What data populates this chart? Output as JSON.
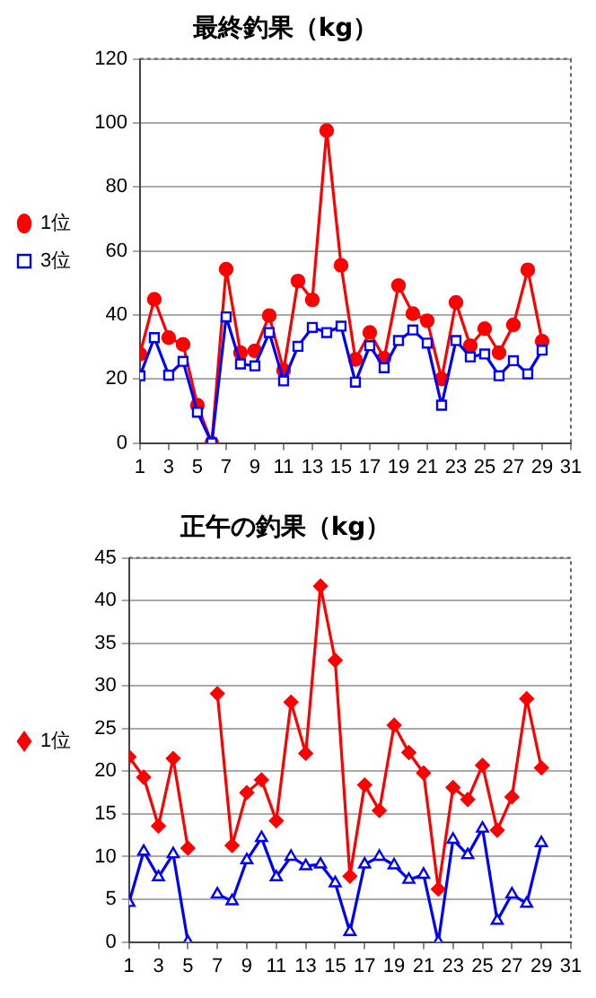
{
  "chart_data": [
    {
      "type": "line",
      "title": "最終釣果（kg）",
      "x": [
        1,
        2,
        3,
        4,
        5,
        6,
        7,
        8,
        9,
        10,
        11,
        12,
        13,
        14,
        15,
        16,
        17,
        18,
        19,
        20,
        21,
        22,
        23,
        24,
        25,
        26,
        27,
        28,
        29
      ],
      "xlim": [
        1,
        31
      ],
      "xticks": [
        1,
        3,
        5,
        7,
        9,
        11,
        13,
        15,
        17,
        19,
        21,
        23,
        25,
        27,
        29,
        31
      ],
      "ylim": [
        0,
        120
      ],
      "yticks": [
        0,
        20,
        40,
        60,
        80,
        100,
        120
      ],
      "grid": "y",
      "legend": "left",
      "series": [
        {
          "name": "1位",
          "color": "#ff0000",
          "marker": "circle",
          "values": [
            27.8,
            44.9,
            32.9,
            30.8,
            11.8,
            0,
            54.3,
            28.2,
            28.8,
            39.8,
            22.7,
            50.6,
            44.7,
            97.6,
            55.5,
            26.1,
            34.5,
            26.5,
            49.2,
            40.4,
            38.2,
            20,
            43.9,
            30.4,
            35.7,
            28.2,
            36.9,
            54.1,
            31.8
          ]
        },
        {
          "name": "3位",
          "color": "#0000ff",
          "marker": "square",
          "values": [
            21,
            32.9,
            21.2,
            25.5,
            9.6,
            0,
            39.4,
            24.7,
            24.1,
            34.5,
            19.4,
            30.2,
            36.1,
            34.5,
            36.5,
            19,
            30.4,
            23.5,
            32,
            35.3,
            31.2,
            11.8,
            32,
            26.9,
            27.8,
            21,
            25.7,
            21.6,
            29
          ]
        }
      ]
    },
    {
      "type": "line",
      "title": "正午の釣果（kg）",
      "x": [
        1,
        2,
        3,
        4,
        5,
        6,
        7,
        8,
        9,
        10,
        11,
        12,
        13,
        14,
        15,
        16,
        17,
        18,
        19,
        20,
        21,
        22,
        23,
        24,
        25,
        26,
        27,
        28,
        29
      ],
      "xlim": [
        1,
        31
      ],
      "xticks": [
        1,
        3,
        5,
        7,
        9,
        11,
        13,
        15,
        17,
        19,
        21,
        23,
        25,
        27,
        29,
        31
      ],
      "ylim": [
        0,
        45
      ],
      "yticks": [
        0,
        5,
        10,
        15,
        20,
        25,
        30,
        35,
        40,
        45
      ],
      "grid": "y",
      "legend": "left",
      "series": [
        {
          "name": "1位",
          "color": "#ff0000",
          "marker": "diamond",
          "values": [
            21.7,
            19.3,
            13.6,
            21.5,
            11,
            null,
            29.1,
            11.3,
            17.5,
            19,
            14.2,
            28.1,
            22.1,
            41.7,
            33,
            7.7,
            18.4,
            15.4,
            25.4,
            22.2,
            19.8,
            6.2,
            18.1,
            16.7,
            20.7,
            13.1,
            17,
            28.5,
            20.4
          ]
        },
        {
          "color": "#0000ff",
          "marker": "triangle",
          "values": [
            4.6,
            10.6,
            7.6,
            10.3,
            0,
            null,
            5.6,
            4.8,
            9.6,
            12.2,
            7.6,
            10,
            8.9,
            9.1,
            6.9,
            1.2,
            9.1,
            10,
            9,
            7.3,
            7.9,
            0,
            12,
            10.2,
            13.3,
            2.5,
            5.6,
            4.5,
            11.6
          ]
        }
      ]
    }
  ]
}
